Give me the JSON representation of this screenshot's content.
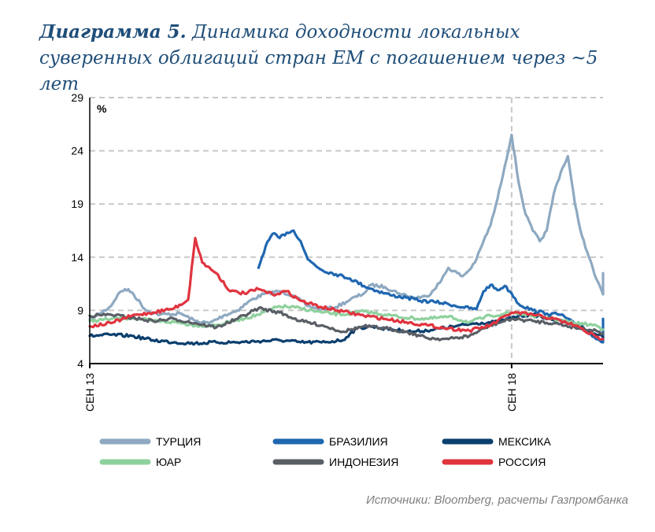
{
  "title": {
    "label": "Диаграмма 5.",
    "text": "Динамика доходности локальных суверенных облигаций стран ЕМ с погашением через ~5 лет"
  },
  "source": "Источники: Bloomberg, расчеты Газпромбанка",
  "chart_data": {
    "type": "line",
    "unit_label": "%",
    "ylim": [
      4,
      29
    ],
    "yticks": [
      4,
      9,
      14,
      19,
      24,
      29
    ],
    "xlim": [
      "2013-09",
      "2019-10"
    ],
    "xticks": [
      {
        "date": "2013-09",
        "label": "СЕН 13"
      },
      {
        "date": "2018-09",
        "label": "СЕН 18"
      }
    ],
    "grid": "horizontal dashed, vertical dashed at СЕН 18",
    "legend_position": "bottom",
    "series": [
      {
        "name": "ТУРЦИЯ",
        "color": "#8ea9c1",
        "points": [
          [
            "2013-09",
            8.2
          ],
          [
            "2013-10",
            8.5
          ],
          [
            "2013-12",
            9.4
          ],
          [
            "2014-01",
            10.5
          ],
          [
            "2014-02",
            11.0
          ],
          [
            "2014-03",
            10.7
          ],
          [
            "2014-05",
            9.0
          ],
          [
            "2014-07",
            8.6
          ],
          [
            "2014-10",
            8.7
          ],
          [
            "2014-12",
            8.0
          ],
          [
            "2015-02",
            7.8
          ],
          [
            "2015-04",
            8.5
          ],
          [
            "2015-06",
            9.0
          ],
          [
            "2015-08",
            10.0
          ],
          [
            "2015-10",
            10.6
          ],
          [
            "2015-12",
            10.8
          ],
          [
            "2016-02",
            10.4
          ],
          [
            "2016-04",
            9.4
          ],
          [
            "2016-06",
            9.1
          ],
          [
            "2016-08",
            9.3
          ],
          [
            "2016-10",
            10.0
          ],
          [
            "2016-12",
            10.6
          ],
          [
            "2017-01",
            11.4
          ],
          [
            "2017-03",
            11.2
          ],
          [
            "2017-05",
            10.6
          ],
          [
            "2017-07",
            10.2
          ],
          [
            "2017-09",
            10.3
          ],
          [
            "2017-11",
            11.8
          ],
          [
            "2017-12",
            13.0
          ],
          [
            "2018-02",
            12.2
          ],
          [
            "2018-03",
            12.8
          ],
          [
            "2018-04",
            13.8
          ],
          [
            "2018-05",
            15.5
          ],
          [
            "2018-06",
            17.0
          ],
          [
            "2018-07",
            19.5
          ],
          [
            "2018-08",
            22.5
          ],
          [
            "2018-09",
            25.5
          ],
          [
            "2018-10",
            21.0
          ],
          [
            "2018-11",
            18.0
          ],
          [
            "2018-12",
            16.5
          ],
          [
            "2019-01",
            15.5
          ],
          [
            "2019-02",
            16.5
          ],
          [
            "2019-03",
            20.0
          ],
          [
            "2019-04",
            22.0
          ],
          [
            "2019-05",
            23.5
          ],
          [
            "2019-06",
            19.0
          ],
          [
            "2019-07",
            16.0
          ],
          [
            "2019-08",
            14.0
          ],
          [
            "2019-09",
            12.0
          ],
          [
            "2019-10",
            10.5
          ],
          [
            "2019-10",
            12.5
          ]
        ]
      },
      {
        "name": "БРАЗИЛИЯ",
        "color": "#1f67b1",
        "points": [
          [
            "2015-09",
            13.0
          ],
          [
            "2015-10",
            15.0
          ],
          [
            "2015-11",
            16.2
          ],
          [
            "2015-12",
            15.8
          ],
          [
            "2016-01",
            16.3
          ],
          [
            "2016-02",
            16.5
          ],
          [
            "2016-03",
            15.5
          ],
          [
            "2016-04",
            13.8
          ],
          [
            "2016-06",
            12.8
          ],
          [
            "2016-08",
            12.4
          ],
          [
            "2016-10",
            12.0
          ],
          [
            "2016-12",
            11.3
          ],
          [
            "2017-02",
            10.8
          ],
          [
            "2017-04",
            10.4
          ],
          [
            "2017-06",
            10.2
          ],
          [
            "2017-08",
            9.9
          ],
          [
            "2017-10",
            9.8
          ],
          [
            "2017-12",
            9.6
          ],
          [
            "2018-02",
            9.3
          ],
          [
            "2018-04",
            9.1
          ],
          [
            "2018-05",
            10.8
          ],
          [
            "2018-06",
            11.4
          ],
          [
            "2018-07",
            10.9
          ],
          [
            "2018-08",
            11.3
          ],
          [
            "2018-09",
            10.6
          ],
          [
            "2018-10",
            9.6
          ],
          [
            "2018-12",
            9.0
          ],
          [
            "2019-02",
            8.7
          ],
          [
            "2019-04",
            8.6
          ],
          [
            "2019-06",
            7.7
          ],
          [
            "2019-08",
            6.9
          ],
          [
            "2019-10",
            6.0
          ],
          [
            "2019-10",
            8.2
          ]
        ]
      },
      {
        "name": "МЕКСИКА",
        "color": "#0b3f6e",
        "points": [
          [
            "2013-09",
            6.6
          ],
          [
            "2013-12",
            6.7
          ],
          [
            "2014-03",
            6.6
          ],
          [
            "2014-06",
            6.2
          ],
          [
            "2014-09",
            6.0
          ],
          [
            "2014-12",
            5.9
          ],
          [
            "2015-03",
            6.0
          ],
          [
            "2015-06",
            6.0
          ],
          [
            "2015-09",
            6.1
          ],
          [
            "2015-12",
            6.2
          ],
          [
            "2016-03",
            6.0
          ],
          [
            "2016-06",
            6.0
          ],
          [
            "2016-09",
            6.2
          ],
          [
            "2016-10",
            6.8
          ],
          [
            "2016-11",
            7.3
          ],
          [
            "2017-01",
            7.5
          ],
          [
            "2017-04",
            7.2
          ],
          [
            "2017-07",
            7.0
          ],
          [
            "2017-10",
            7.2
          ],
          [
            "2018-01",
            7.5
          ],
          [
            "2018-04",
            7.8
          ],
          [
            "2018-07",
            7.9
          ],
          [
            "2018-10",
            8.5
          ],
          [
            "2018-12",
            8.6
          ],
          [
            "2019-03",
            8.1
          ],
          [
            "2019-06",
            7.8
          ],
          [
            "2019-08",
            7.0
          ],
          [
            "2019-10",
            6.5
          ]
        ]
      },
      {
        "name": "ЮАР",
        "color": "#8fd19e",
        "points": [
          [
            "2013-09",
            8.0
          ],
          [
            "2013-12",
            8.2
          ],
          [
            "2014-03",
            8.3
          ],
          [
            "2014-06",
            8.0
          ],
          [
            "2014-09",
            7.9
          ],
          [
            "2014-12",
            7.6
          ],
          [
            "2015-03",
            7.6
          ],
          [
            "2015-06",
            8.1
          ],
          [
            "2015-09",
            8.6
          ],
          [
            "2015-12",
            9.4
          ],
          [
            "2016-03",
            9.2
          ],
          [
            "2016-06",
            8.8
          ],
          [
            "2016-09",
            8.6
          ],
          [
            "2016-12",
            8.9
          ],
          [
            "2017-03",
            8.6
          ],
          [
            "2017-06",
            8.3
          ],
          [
            "2017-09",
            8.2
          ],
          [
            "2017-12",
            8.4
          ],
          [
            "2018-03",
            7.9
          ],
          [
            "2018-06",
            8.5
          ],
          [
            "2018-09",
            8.8
          ],
          [
            "2018-12",
            8.5
          ],
          [
            "2019-03",
            8.2
          ],
          [
            "2019-06",
            7.8
          ],
          [
            "2019-09",
            7.6
          ],
          [
            "2019-10",
            7.2
          ]
        ]
      },
      {
        "name": "ИНДОНЕЗИЯ",
        "color": "#5a5f66",
        "points": [
          [
            "2013-09",
            8.5
          ],
          [
            "2013-12",
            8.6
          ],
          [
            "2014-03",
            8.3
          ],
          [
            "2014-06",
            8.0
          ],
          [
            "2014-09",
            8.2
          ],
          [
            "2014-12",
            7.8
          ],
          [
            "2015-03",
            7.4
          ],
          [
            "2015-06",
            8.2
          ],
          [
            "2015-09",
            9.2
          ],
          [
            "2015-12",
            8.8
          ],
          [
            "2016-03",
            8.0
          ],
          [
            "2016-06",
            7.6
          ],
          [
            "2016-09",
            7.0
          ],
          [
            "2016-12",
            7.5
          ],
          [
            "2017-03",
            7.3
          ],
          [
            "2017-06",
            7.0
          ],
          [
            "2017-09",
            6.4
          ],
          [
            "2017-12",
            6.3
          ],
          [
            "2018-03",
            6.6
          ],
          [
            "2018-06",
            7.6
          ],
          [
            "2018-09",
            8.2
          ],
          [
            "2018-12",
            8.0
          ],
          [
            "2019-03",
            7.8
          ],
          [
            "2019-06",
            7.4
          ],
          [
            "2019-09",
            7.1
          ],
          [
            "2019-10",
            6.8
          ]
        ]
      },
      {
        "name": "РОССИЯ",
        "color": "#e0343f",
        "points": [
          [
            "2013-09",
            7.5
          ],
          [
            "2013-12",
            7.8
          ],
          [
            "2014-03",
            8.5
          ],
          [
            "2014-06",
            8.8
          ],
          [
            "2014-09",
            9.2
          ],
          [
            "2014-11",
            10.0
          ],
          [
            "2014-12",
            15.8
          ],
          [
            "2015-01",
            13.5
          ],
          [
            "2015-03",
            12.5
          ],
          [
            "2015-05",
            10.8
          ],
          [
            "2015-07",
            10.6
          ],
          [
            "2015-09",
            11.0
          ],
          [
            "2015-11",
            10.5
          ],
          [
            "2016-01",
            10.8
          ],
          [
            "2016-03",
            9.9
          ],
          [
            "2016-06",
            9.3
          ],
          [
            "2016-09",
            8.9
          ],
          [
            "2016-12",
            8.5
          ],
          [
            "2017-03",
            8.2
          ],
          [
            "2017-06",
            7.9
          ],
          [
            "2017-09",
            7.6
          ],
          [
            "2017-12",
            7.3
          ],
          [
            "2018-03",
            7.1
          ],
          [
            "2018-06",
            7.6
          ],
          [
            "2018-09",
            8.8
          ],
          [
            "2018-12",
            8.6
          ],
          [
            "2019-03",
            8.2
          ],
          [
            "2019-06",
            7.6
          ],
          [
            "2019-09",
            6.5
          ],
          [
            "2019-10",
            6.3
          ]
        ]
      }
    ]
  }
}
